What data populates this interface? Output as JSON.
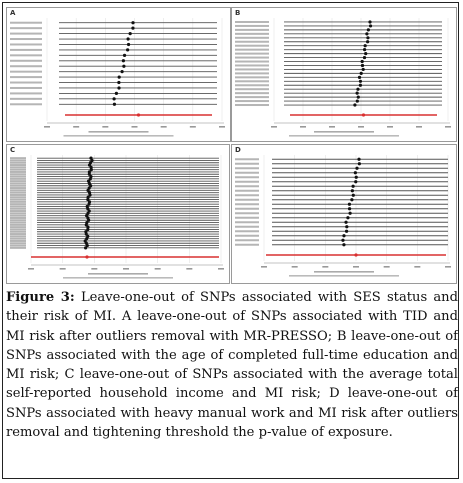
{
  "figure": {
    "label": "Figure 3:",
    "caption": "Leave-one-out of SNPs associated with SES status and their risk of MI. A leave-one-out of SNPs associated with TID and MI risk after outliers removal with MR-PRESSO; B leave-one-out of SNPs associated with the age of completed full-time education and MI risk; C leave-one-out of SNPs associated with the average total self-reported household income and MI risk; D leave-one-out of SNPs associated with heavy manual work and MI risk after outliers removal and tightening threshold the p-value of exposure."
  },
  "panels": [
    {
      "label": "A"
    },
    {
      "label": "B"
    },
    {
      "label": "C"
    },
    {
      "label": "D"
    }
  ],
  "colors": {
    "line": "#555555",
    "point": "#111111",
    "overall": "#d93030",
    "grid": "#e4e4e4",
    "border": "#9a9a9a"
  }
}
